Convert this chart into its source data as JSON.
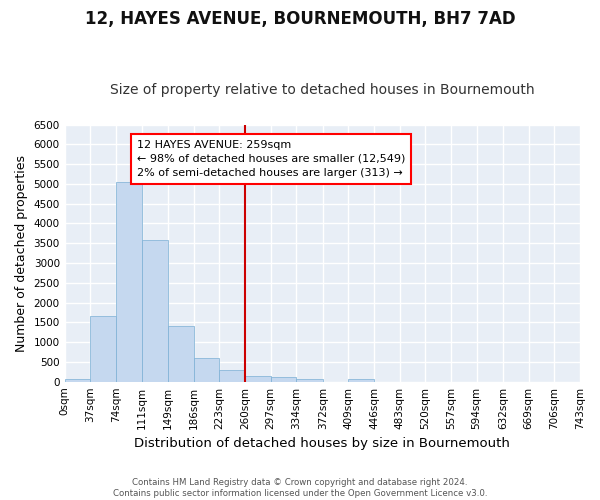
{
  "title": "12, HAYES AVENUE, BOURNEMOUTH, BH7 7AD",
  "subtitle": "Size of property relative to detached houses in Bournemouth",
  "xlabel": "Distribution of detached houses by size in Bournemouth",
  "ylabel": "Number of detached properties",
  "footer_line1": "Contains HM Land Registry data © Crown copyright and database right 2024.",
  "footer_line2": "Contains public sector information licensed under the Open Government Licence v3.0.",
  "property_line_x": 260,
  "legend_title": "12 HAYES AVENUE: 259sqm",
  "legend_line1": "← 98% of detached houses are smaller (12,549)",
  "legend_line2": "2% of semi-detached houses are larger (313) →",
  "bar_edges": [
    0,
    37,
    74,
    111,
    149,
    186,
    223,
    260,
    297,
    334,
    372,
    409,
    446,
    483,
    520,
    557,
    594,
    632,
    669,
    706,
    743
  ],
  "bar_heights": [
    60,
    1650,
    5050,
    3580,
    1400,
    600,
    300,
    150,
    130,
    70,
    0,
    80,
    0,
    0,
    0,
    0,
    0,
    0,
    0,
    0
  ],
  "bar_color": "#c5d8ef",
  "bar_edgecolor": "#7bafd4",
  "bg_color": "#e8eef6",
  "grid_color": "#ffffff",
  "vline_color": "#cc0000",
  "fig_bg_color": "#ffffff",
  "ylim": [
    0,
    6500
  ],
  "yticks": [
    0,
    500,
    1000,
    1500,
    2000,
    2500,
    3000,
    3500,
    4000,
    4500,
    5000,
    5500,
    6000,
    6500
  ],
  "title_fontsize": 12,
  "subtitle_fontsize": 10,
  "axis_label_fontsize": 9.5,
  "tick_fontsize": 7.5,
  "ylabel_fontsize": 9
}
